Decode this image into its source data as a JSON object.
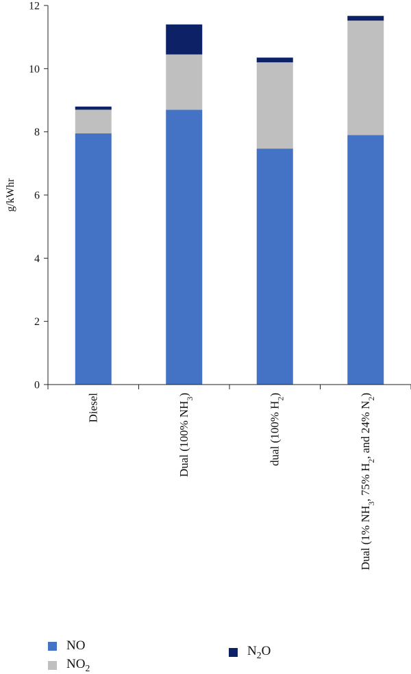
{
  "chart_data": {
    "type": "bar",
    "stacked": true,
    "title": "",
    "xlabel": "",
    "ylabel": "g/kWhr",
    "ylim": [
      0,
      12
    ],
    "yticks": [
      0,
      2,
      4,
      6,
      8,
      10,
      12
    ],
    "categories": [
      {
        "base": "Diesel",
        "parts": [
          [
            "Diesel",
            ""
          ]
        ]
      },
      {
        "base": "Dual (100% NH3)",
        "parts": [
          [
            "Dual (100% NH",
            ""
          ],
          [
            "3",
            "sub"
          ],
          [
            ")",
            ""
          ]
        ]
      },
      {
        "base": "dual (100% H2)",
        "parts": [
          [
            "dual (100% H",
            ""
          ],
          [
            "2",
            "sub"
          ],
          [
            ")",
            ""
          ]
        ]
      },
      {
        "base": "Dual (1% NH3, 75% H2, and 24% N2)",
        "parts": [
          [
            "Dual (1% NH",
            ""
          ],
          [
            "3",
            "sub"
          ],
          [
            ", 75% H",
            ""
          ],
          [
            "2",
            "sub"
          ],
          [
            ", and 24% N",
            ""
          ],
          [
            "2",
            "sub"
          ],
          [
            ")",
            ""
          ]
        ]
      }
    ],
    "series": [
      {
        "name": "NO",
        "label_html": "NO",
        "color": "#4472C4",
        "values": [
          7.95,
          8.7,
          7.47,
          7.9
        ]
      },
      {
        "name": "NO2",
        "label_html": "NO<sub>2</sub>",
        "color": "#BFBFBF",
        "values": [
          0.75,
          1.75,
          2.73,
          3.62
        ]
      },
      {
        "name": "N2O",
        "label_html": "N<sub>2</sub>O",
        "color": "#0D2266",
        "values": [
          0.1,
          0.95,
          0.15,
          0.15
        ]
      }
    ],
    "grid": false,
    "legend_position": "bottom"
  }
}
